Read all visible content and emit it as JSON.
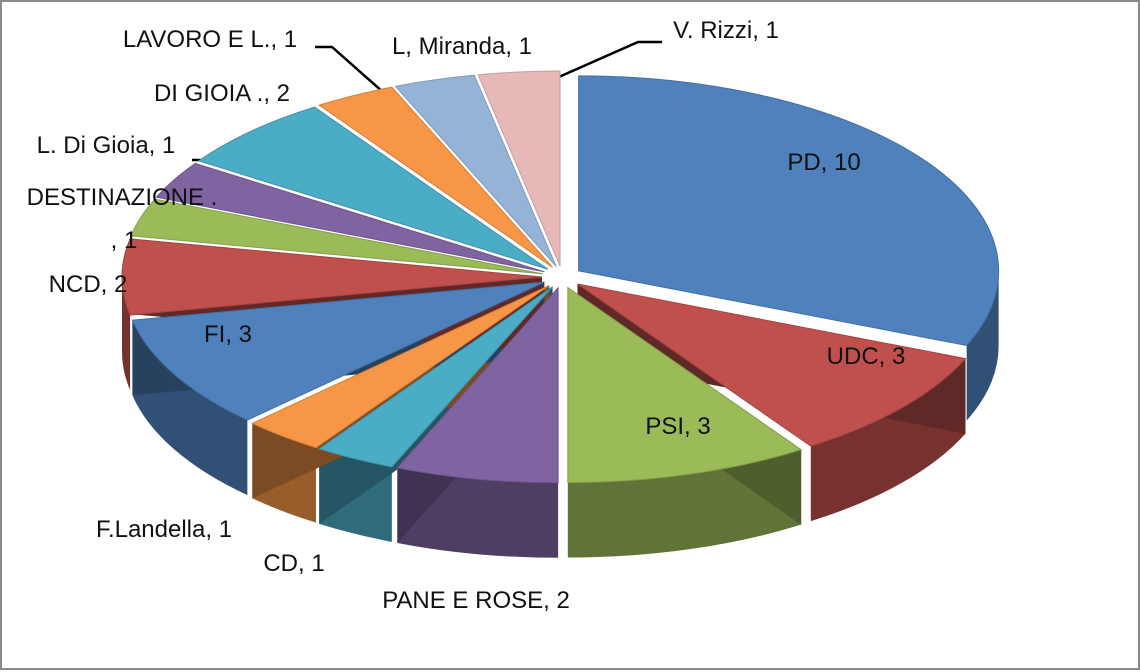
{
  "chart_data": {
    "type": "pie",
    "style": "3d-exploded",
    "legend": "none",
    "slices": [
      {
        "label": "PD",
        "value": 10,
        "display": "PD, 10",
        "color": "#4f81bd"
      },
      {
        "label": "UDC",
        "value": 3,
        "display": "UDC, 3",
        "color": "#c0504d"
      },
      {
        "label": "PSI",
        "value": 3,
        "display": "PSI, 3",
        "color": "#9bbb59"
      },
      {
        "label": "PANE E ROSE",
        "value": 2,
        "display": "PANE E ROSE, 2",
        "color": "#8064a2"
      },
      {
        "label": "CD",
        "value": 1,
        "display": "CD, 1",
        "color": "#4bacc6"
      },
      {
        "label": "F.Landella",
        "value": 1,
        "display": "F.Landella, 1",
        "color": "#f79646"
      },
      {
        "label": "FI",
        "value": 3,
        "display": "FI, 3",
        "color": "#4f81bd"
      },
      {
        "label": "NCD",
        "value": 2,
        "display": "NCD, 2",
        "color": "#c0504d"
      },
      {
        "label": "DESTINAZIONE .",
        "value": 1,
        "display": "DESTINAZIONE .",
        "display2": ", 1",
        "color": "#9bbb59"
      },
      {
        "label": "L. Di Gioia",
        "value": 1,
        "display": "L. Di Gioia, 1",
        "color": "#8064a2"
      },
      {
        "label": "DI GIOIA .",
        "value": 2,
        "display": "DI GIOIA ., 2",
        "color": "#4bacc6"
      },
      {
        "label": "LAVORO E L.",
        "value": 1,
        "display": "LAVORO E L., 1",
        "color": "#f79646"
      },
      {
        "label": "L, Miranda",
        "value": 1,
        "display": "L, Miranda, 1",
        "color": "#95b3d7"
      },
      {
        "label": "V. Rizzi",
        "value": 1,
        "display": "V. Rizzi, 1",
        "color": "#e6b9b8"
      }
    ]
  }
}
